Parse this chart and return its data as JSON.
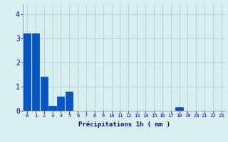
{
  "values": [
    3.2,
    3.2,
    1.4,
    0.2,
    0.6,
    0.8,
    0.0,
    0.0,
    0.0,
    0.0,
    0.0,
    0.0,
    0.0,
    0.0,
    0.0,
    0.0,
    0.0,
    0.0,
    0.15,
    0.0,
    0.0,
    0.0,
    0.0,
    0.0
  ],
  "bar_color": "#0055cc",
  "bar_edge_color": "#0044bb",
  "background_color": "#d6f0f0",
  "grid_color": "#aacccc",
  "xlabel": "Précipitations 1h ( mm )",
  "xlabel_color": "#0000cc",
  "tick_color": "#0000cc",
  "ylim": [
    0,
    4.4
  ],
  "yticks": [
    0,
    1,
    2,
    3,
    4
  ],
  "xlim": [
    -0.5,
    23.5
  ],
  "xtick_labels": [
    "0",
    "1",
    "2",
    "3",
    "4",
    "5",
    "6",
    "7",
    "8",
    "9",
    "10",
    "11",
    "12",
    "13",
    "14",
    "15",
    "16",
    "17",
    "18",
    "19",
    "20",
    "21",
    "22",
    "23"
  ]
}
